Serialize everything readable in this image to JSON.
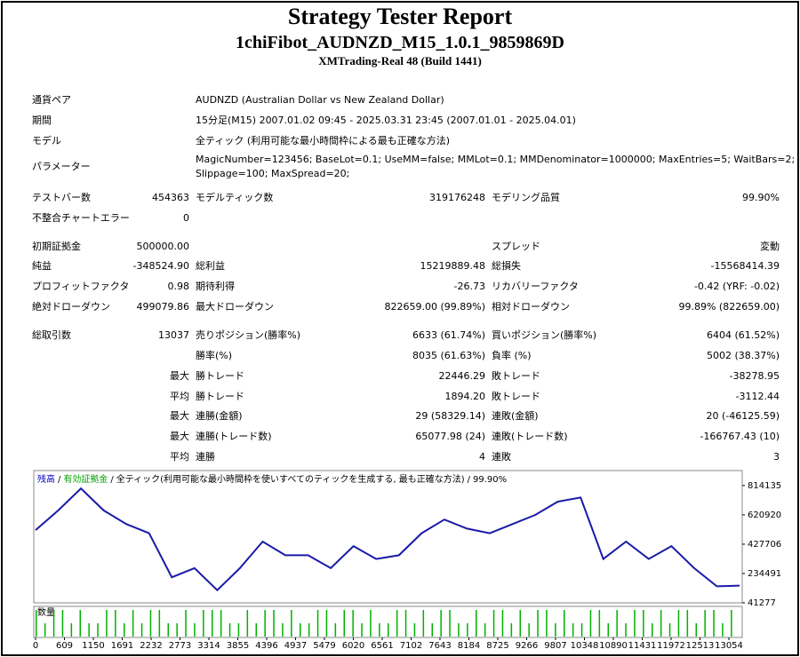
{
  "header": {
    "title": "Strategy Tester Report",
    "subtitle": "1chiFibot_AUDNZD_M15_1.0.1_9859869D",
    "server": "XMTrading-Real 48 (Build 1441)"
  },
  "info": [
    {
      "label": "通貨ペア",
      "value": [
        "AUDNZD (Australian Dollar vs New Zealand Dollar)"
      ]
    },
    {
      "label": "期間",
      "value": [
        "15分足(M15) 2007.01.02 09:45 - 2025.03.31 23:45 (2007.01.01 - 2025.04.01)"
      ]
    },
    {
      "label": "モデル",
      "value": [
        "全ティック (利用可能な最小時間枠による最も正確な方法)"
      ]
    },
    {
      "label": "パラメーター",
      "value": [
        "MagicNumber=123456; BaseLot=0.1; UseMM=false; MMLot=0.1; MMDenominator=1000000; MaxEntries=5; WaitBars=2;",
        "Slippage=100; MaxSpread=20;"
      ]
    }
  ],
  "stats": {
    "rows": [
      [
        "テストバー数",
        "454363",
        "モデルティック数",
        "319176248",
        "モデリング品質",
        "99.90%"
      ],
      [
        "不整合チャートエラー",
        "0",
        null,
        null,
        null,
        null
      ],
      [
        "初期証拠金",
        "500000.00",
        null,
        null,
        "スプレッド",
        "変動"
      ],
      [
        "純益",
        "-348524.90",
        "総利益",
        "15219889.48",
        "総損失",
        "-15568414.39"
      ],
      [
        "プロフィットファクタ",
        "0.98",
        "期待利得",
        "-26.73",
        "リカバリーファクタ",
        "-0.42 (YRF: -0.02)"
      ],
      [
        "絶対ドローダウン",
        "499079.86",
        "最大ドローダウン",
        "822659.00 (99.89%)",
        "相対ドローダウン",
        "99.89% (822659.00)"
      ],
      [
        "総取引数",
        "13037",
        "売りポジション(勝率%)",
        "6633 (61.74%)",
        "買いポジション(勝率%)",
        "6404 (61.52%)"
      ],
      [
        null,
        null,
        "勝率(%)",
        "8035 (61.63%)",
        "負率 (%)",
        "5002 (38.37%)"
      ],
      [
        null,
        "最大",
        "勝トレード",
        "22446.29",
        "敗トレード",
        "-38278.95"
      ],
      [
        null,
        "平均",
        "勝トレード",
        "1894.20",
        "敗トレード",
        "-3112.44"
      ],
      [
        null,
        "最大",
        "連勝(金額)",
        "29 (58329.14)",
        "連敗(金額)",
        "20 (-46125.59)"
      ],
      [
        null,
        "最大",
        "連勝(トレード数)",
        "65077.98 (24)",
        "連敗(トレード数)",
        "-166767.43 (10)"
      ],
      [
        null,
        "平均",
        "連勝",
        "4",
        "連敗",
        "3"
      ]
    ]
  },
  "chart_data": {
    "type": "line",
    "legend": [
      "残高",
      "有効証拠金",
      "全ティック(利用可能な最小時間枠を使いすべてのティックを生成する, 最も正確な方法)",
      "99.90%"
    ],
    "legend_colors": [
      "#0000c0",
      "#00a000",
      "#000000",
      "#000000"
    ],
    "separator": "/",
    "color": "#1a1aa8",
    "values": [
      520000,
      650000,
      795000,
      650000,
      560000,
      500000,
      210000,
      270000,
      125000,
      270000,
      445000,
      355000,
      355000,
      270000,
      415000,
      330000,
      355000,
      500000,
      590000,
      530000,
      500000,
      560000,
      620000,
      708000,
      735000,
      330000,
      445000,
      330000,
      415000,
      270000,
      150000,
      155000
    ],
    "ylim": [
      41277,
      901000
    ],
    "yticks": [
      814135,
      620920,
      427706,
      234491,
      41277
    ],
    "xticks": [
      0,
      609,
      1150,
      1691,
      2232,
      2773,
      3314,
      3855,
      4396,
      4937,
      5479,
      6020,
      6561,
      7102,
      7643,
      8184,
      8725,
      9266,
      9807,
      10348,
      10890,
      11431,
      11972,
      12513,
      13054
    ],
    "volume": {
      "label": "数量",
      "color": "#00b000",
      "values": [
        2,
        1,
        2,
        2,
        1,
        2,
        1,
        1,
        2,
        2,
        1,
        2,
        1,
        2,
        2,
        1,
        1,
        2,
        1,
        2,
        2,
        2,
        1,
        1,
        2,
        1,
        2,
        2,
        1,
        2,
        1,
        1,
        2,
        2,
        1,
        2,
        2,
        1,
        2,
        1,
        1,
        2,
        2,
        1,
        2,
        1,
        2,
        2,
        1,
        1,
        2,
        1,
        2,
        2,
        1,
        2,
        1,
        2,
        2,
        1,
        2,
        1,
        1,
        2,
        2,
        1,
        2,
        1,
        2,
        2,
        1,
        2,
        1,
        2,
        2,
        1,
        2,
        2,
        1,
        2
      ]
    }
  }
}
